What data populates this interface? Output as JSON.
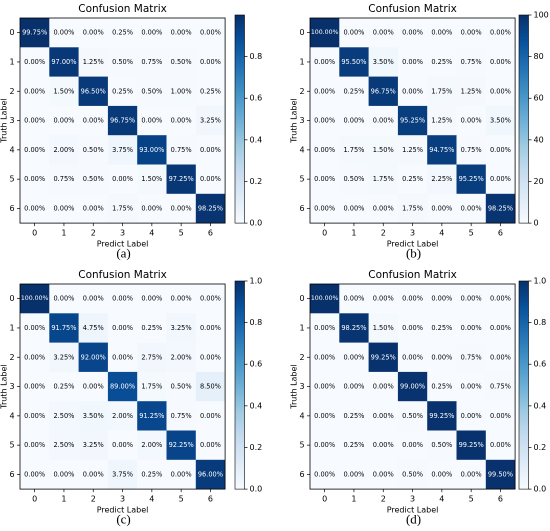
{
  "chart_data": [
    {
      "panel": "(a)",
      "type": "heatmap",
      "title": "Confusion Matrix",
      "xlabel": "Predict Label",
      "ylabel": "Truth Label",
      "categories": [
        "0",
        "1",
        "2",
        "3",
        "4",
        "5",
        "6"
      ],
      "colorbar": {
        "range": [
          0,
          1
        ],
        "ticks": [
          "0.0",
          "0.2",
          "0.4",
          "0.6",
          "0.8"
        ]
      },
      "cells": [
        [
          "99.75%",
          "0.00%",
          "0.00%",
          "0.25%",
          "0.00%",
          "0.00%",
          "0.00%"
        ],
        [
          "0.00%",
          "97.00%",
          "1.25%",
          "0.50%",
          "0.75%",
          "0.50%",
          "0.00%"
        ],
        [
          "0.00%",
          "1.50%",
          "96.50%",
          "0.25%",
          "0.50%",
          "1.00%",
          "0.25%"
        ],
        [
          "0.00%",
          "0.00%",
          "0.00%",
          "96.75%",
          "0.00%",
          "0.00%",
          "3.25%"
        ],
        [
          "0.00%",
          "2.00%",
          "0.50%",
          "3.75%",
          "93.00%",
          "0.75%",
          "0.00%"
        ],
        [
          "0.00%",
          "0.75%",
          "0.50%",
          "0.00%",
          "1.50%",
          "97.25%",
          "0.00%"
        ],
        [
          "0.00%",
          "0.00%",
          "0.00%",
          "1.75%",
          "0.00%",
          "0.00%",
          "98.25%"
        ]
      ]
    },
    {
      "panel": "(b)",
      "type": "heatmap",
      "title": "Confusion Matrix",
      "xlabel": "Predict Label",
      "ylabel": "Truth Label",
      "categories": [
        "0",
        "1",
        "2",
        "3",
        "4",
        "5",
        "6"
      ],
      "colorbar": {
        "range": [
          0,
          100
        ],
        "ticks": [
          "0",
          "20",
          "40",
          "60",
          "80",
          "100"
        ]
      },
      "cells": [
        [
          "100.00%",
          "0.00%",
          "0.00%",
          "0.00%",
          "0.00%",
          "0.00%",
          "0.00%"
        ],
        [
          "0.00%",
          "95.50%",
          "3.50%",
          "0.00%",
          "0.25%",
          "0.75%",
          "0.00%"
        ],
        [
          "0.00%",
          "0.25%",
          "96.75%",
          "0.00%",
          "1.75%",
          "1.25%",
          "0.00%"
        ],
        [
          "0.00%",
          "0.00%",
          "0.00%",
          "95.25%",
          "1.25%",
          "0.00%",
          "3.50%"
        ],
        [
          "0.00%",
          "1.75%",
          "1.50%",
          "1.25%",
          "94.75%",
          "0.75%",
          "0.00%"
        ],
        [
          "0.00%",
          "0.50%",
          "1.75%",
          "0.25%",
          "2.25%",
          "95.25%",
          "0.00%"
        ],
        [
          "0.00%",
          "0.00%",
          "0.00%",
          "1.75%",
          "0.00%",
          "0.00%",
          "98.25%"
        ]
      ]
    },
    {
      "panel": "(c)",
      "type": "heatmap",
      "title": "Confusion Matrix",
      "xlabel": "Predict Label",
      "ylabel": "Truth Label",
      "categories": [
        "0",
        "1",
        "2",
        "3",
        "4",
        "5",
        "6"
      ],
      "colorbar": {
        "range": [
          0,
          1
        ],
        "ticks": [
          "0.0",
          "0.2",
          "0.4",
          "0.6",
          "0.8",
          "1.0"
        ]
      },
      "cells": [
        [
          "100.00%",
          "0.00%",
          "0.00%",
          "0.00%",
          "0.00%",
          "0.00%",
          "0.00%"
        ],
        [
          "0.00%",
          "91.75%",
          "4.75%",
          "0.00%",
          "0.25%",
          "3.25%",
          "0.00%"
        ],
        [
          "0.00%",
          "3.25%",
          "92.00%",
          "0.00%",
          "2.75%",
          "2.00%",
          "0.00%"
        ],
        [
          "0.00%",
          "0.25%",
          "0.00%",
          "89.00%",
          "1.75%",
          "0.50%",
          "8.50%"
        ],
        [
          "0.00%",
          "2.50%",
          "3.50%",
          "2.00%",
          "91.25%",
          "0.75%",
          "0.00%"
        ],
        [
          "0.00%",
          "2.50%",
          "3.25%",
          "0.00%",
          "2.00%",
          "92.25%",
          "0.00%"
        ],
        [
          "0.00%",
          "0.00%",
          "0.00%",
          "3.75%",
          "0.25%",
          "0.00%",
          "96.00%"
        ]
      ]
    },
    {
      "panel": "(d)",
      "type": "heatmap",
      "title": "Confusion Matrix",
      "xlabel": "Predict Label",
      "ylabel": "Truth Label",
      "categories": [
        "0",
        "1",
        "2",
        "3",
        "4",
        "5",
        "6"
      ],
      "colorbar": {
        "range": [
          0,
          1
        ],
        "ticks": [
          "0.0",
          "0.2",
          "0.4",
          "0.6",
          "0.8",
          "1.0"
        ]
      },
      "cells": [
        [
          "100.00%",
          "0.00%",
          "0.00%",
          "0.00%",
          "0.00%",
          "0.00%",
          "0.00%"
        ],
        [
          "0.00%",
          "98.25%",
          "1.50%",
          "0.00%",
          "0.25%",
          "0.00%",
          "0.00%"
        ],
        [
          "0.00%",
          "0.00%",
          "99.25%",
          "0.00%",
          "0.00%",
          "0.75%",
          "0.00%"
        ],
        [
          "0.00%",
          "0.00%",
          "0.00%",
          "99.00%",
          "0.25%",
          "0.00%",
          "0.75%"
        ],
        [
          "0.00%",
          "0.25%",
          "0.00%",
          "0.50%",
          "99.25%",
          "0.00%",
          "0.00%"
        ],
        [
          "0.00%",
          "0.25%",
          "0.00%",
          "0.00%",
          "0.50%",
          "99.25%",
          "0.00%"
        ],
        [
          "0.00%",
          "0.00%",
          "0.00%",
          "0.50%",
          "0.00%",
          "0.00%",
          "99.50%"
        ]
      ]
    }
  ],
  "colors": {
    "cmap_low": "#f7fbff",
    "cmap_high": "#08306b"
  }
}
